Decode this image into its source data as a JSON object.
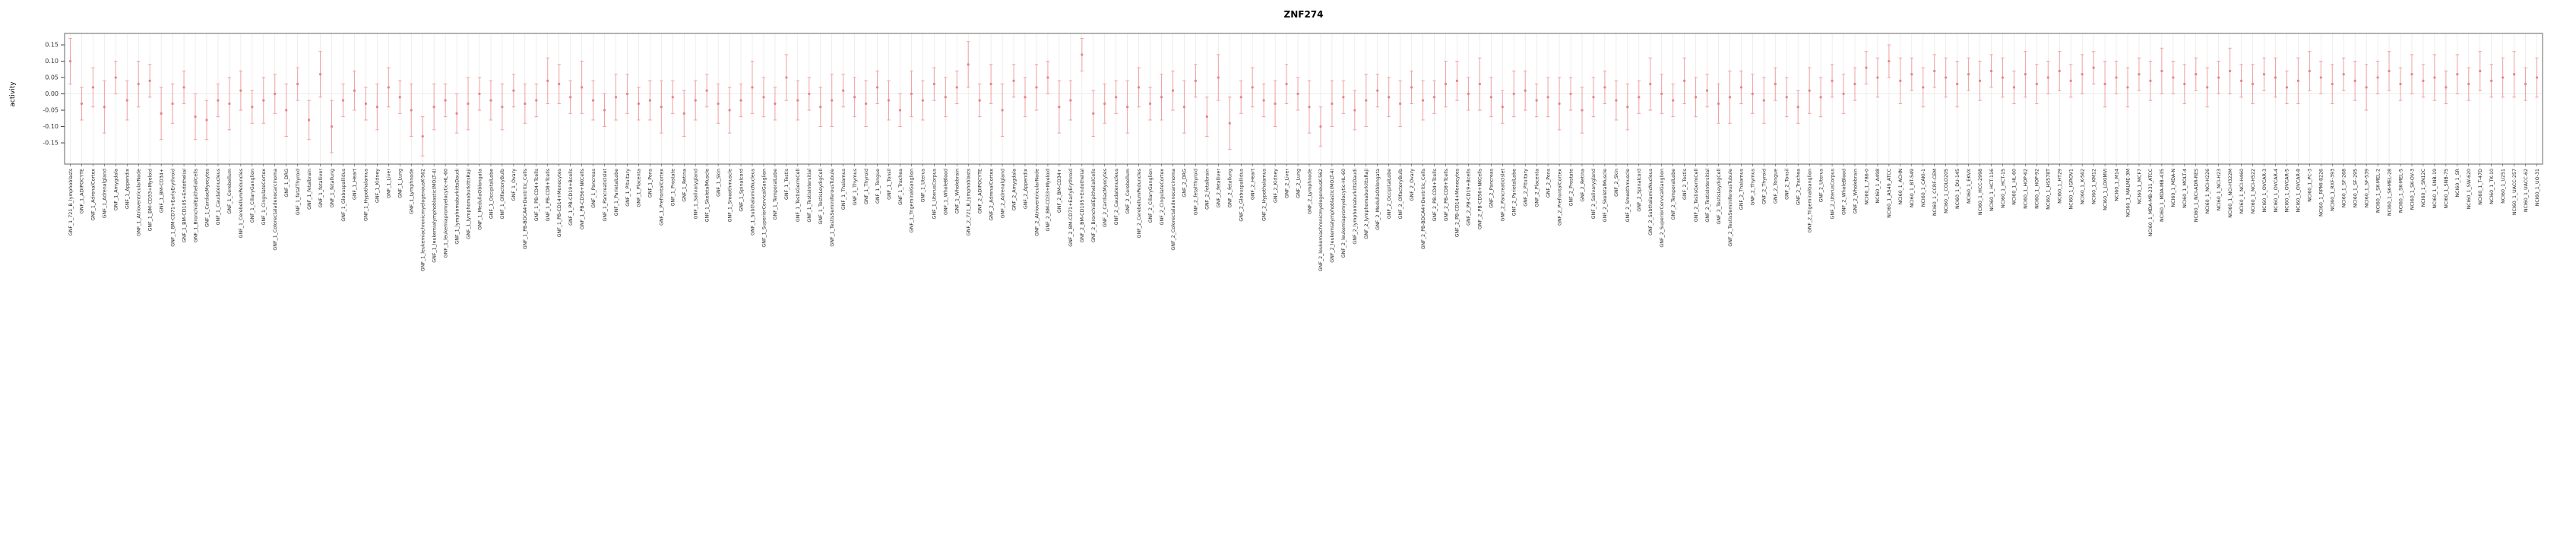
{
  "chart_data": {
    "type": "scatter",
    "title": "ZNF274",
    "ylabel": "activity",
    "xlabel": "",
    "ylim": [
      -0.215,
      0.185
    ],
    "yticks": [
      0.15,
      0.1,
      0.05,
      0.0,
      -0.05,
      -0.1,
      -0.15
    ],
    "grid": "vertical-per-category",
    "legend": "none",
    "point_color": "#e08585",
    "errorbar_color": "#f0a0a0",
    "gridline_color": "#e4e4e4",
    "groups": [
      {
        "name": "GNF_1",
        "prefix": "GNF_1_",
        "labels": [
          "721_B_lymphoblasts",
          "ADIPOCYTE",
          "AdrenalCortex",
          "Adrenalgland",
          "Amygdala",
          "Appendix",
          "AtrioventricularNode",
          "BM-CD33+Myeloid",
          "BM-CD34+",
          "BM-CD71+EarlyErythroid",
          "BM-CD105+Endothelial",
          "BronchialEpithelialCells",
          "CardiacMyocytes",
          "Caudatenucleus",
          "Cerebellum",
          "CerebellumPeduncles",
          "CiliaryGanglion",
          "CingulateCortex",
          "Colorectaladenocarcinoma",
          "DRG",
          "fetalThyroid",
          "fetalbrain",
          "fetalliver",
          "fetallung",
          "Globuspallidus",
          "Heart",
          "Hypothalamus",
          "Kidney",
          "Liver",
          "Lung",
          "Lymphnode",
          "leukemiachronicmyelogenousK-562",
          "leukemialymphoblastic(MOLT-4)",
          "leukemiapromyelocytic-HL-60",
          "lymphomaburkittsDaudi",
          "lymphomaburkittsRaji",
          "MedullaOblongata",
          "OccipitalLobe",
          "OlfactoryBulb",
          "Ovary",
          "PB-BDCA4+Dentritic_Cells",
          "PB-CD4+Tcells",
          "PB-CD8+Tcells",
          "PB-CD14+Monocytes",
          "PB-CD19+Bcells",
          "PB-CD56+NKCells",
          "Pancreas",
          "PancreaticIslet",
          "ParietalLobe",
          "Pituitary",
          "Placenta",
          "Pons",
          "PrefrontalCortex",
          "Prostate",
          "Retina",
          "Salivarygland",
          "SkeletalMuscle",
          "Skin",
          "Smoothmuscle",
          "Spinalcord",
          "SubthalamicNucleus",
          "SuperiorCervicalGanglion",
          "TemporalLobe",
          "Testis",
          "TestisGermCell",
          "TestisIntersitial",
          "TestisLeydigCell",
          "TestisSeminiferousTubule",
          "Thalamus",
          "Thymus",
          "Thyroid",
          "Tongue",
          "Tonsil",
          "Trachea",
          "TrigeminalGanglion",
          "Uterus",
          "UterusCorpus",
          "WholeBlood",
          "Wholebrain"
        ],
        "values": [
          0.1,
          -0.03,
          0.02,
          -0.04,
          0.05,
          -0.02,
          0.03,
          0.04,
          -0.06,
          -0.03,
          0.02,
          -0.07,
          -0.08,
          -0.02,
          -0.03,
          0.01,
          -0.04,
          -0.02,
          0.0,
          -0.05,
          0.03,
          -0.08,
          0.06,
          -0.1,
          -0.02,
          0.01,
          -0.03,
          -0.04,
          0.02,
          -0.01,
          -0.05,
          -0.13,
          -0.04,
          -0.02,
          -0.06,
          -0.03,
          0.0,
          -0.02,
          -0.04,
          0.01,
          -0.03,
          -0.02,
          0.04,
          0.03,
          -0.01,
          0.02,
          -0.02,
          -0.05,
          -0.01,
          0.0,
          -0.03,
          -0.02,
          -0.04,
          -0.01,
          -0.06,
          -0.02,
          0.01,
          -0.03,
          -0.05,
          -0.02,
          0.02,
          -0.01,
          -0.03,
          0.05,
          -0.02,
          0.0,
          -0.04,
          -0.02,
          0.01,
          -0.01,
          -0.03,
          0.02,
          -0.02,
          -0.05,
          0.0,
          -0.02,
          0.03,
          -0.01,
          0.02
        ],
        "errors": [
          0.07,
          0.05,
          0.06,
          0.08,
          0.05,
          0.06,
          0.07,
          0.05,
          0.08,
          0.06,
          0.05,
          0.07,
          0.06,
          0.05,
          0.08,
          0.06,
          0.05,
          0.07,
          0.06,
          0.08,
          0.05,
          0.06,
          0.07,
          0.08,
          0.05,
          0.06,
          0.05,
          0.07,
          0.06,
          0.05,
          0.08,
          0.06,
          0.07,
          0.05,
          0.06,
          0.08,
          0.05,
          0.06,
          0.07,
          0.05,
          0.06,
          0.05,
          0.07,
          0.06,
          0.05,
          0.08,
          0.06,
          0.05,
          0.07,
          0.06,
          0.05,
          0.06,
          0.08,
          0.05,
          0.07,
          0.06,
          0.05,
          0.06,
          0.07,
          0.05,
          0.08,
          0.06,
          0.05,
          0.07,
          0.06,
          0.05,
          0.06,
          0.08,
          0.05,
          0.06,
          0.07,
          0.05,
          0.06,
          0.05,
          0.07,
          0.06,
          0.05,
          0.06,
          0.05
        ]
      },
      {
        "name": "GNF_2",
        "prefix": "GNF_2_",
        "labels": [
          "721_B_lymphoblasts",
          "ADIPOCYTE",
          "AdrenalCortex",
          "Adrenalgland",
          "Amygdala",
          "Appendix",
          "AtrioventricularNode",
          "BM-CD33+Myeloid",
          "BM-CD34+",
          "BM-CD71+EarlyErythroid",
          "BM-CD105+Endothelial",
          "BronchialEpithelialCells",
          "CardiacMyocytes",
          "Caudatenucleus",
          "Cerebellum",
          "CerebellumPeduncles",
          "CiliaryGanglion",
          "CingulateCortex",
          "Colorectaladenocarcinoma",
          "DRG",
          "fetalThyroid",
          "fetalbrain",
          "fetalliver",
          "fetallung",
          "Globuspallidus",
          "Heart",
          "Hypothalamus",
          "Kidney",
          "Liver",
          "Lung",
          "Lymphnode",
          "leukemiachronicmyelogenousK-562",
          "leukemialymphoblastic(MOLT-4)",
          "leukemiapromyelocytic-HL-60",
          "lymphomaburkittsDaudi",
          "lymphomaburkittsRaji",
          "MedullaOblongata",
          "OccipitalLobe",
          "OlfactoryBulb",
          "Ovary",
          "PB-BDCA4+Dentritic_Cells",
          "PB-CD4+Tcells",
          "PB-CD8+Tcells",
          "PB-CD14+Monocytes",
          "PB-CD19+Bcells",
          "PB-CD56+NKCells",
          "Pancreas",
          "PancreaticIslet",
          "ParietalLobe",
          "Pituitary",
          "Placenta",
          "Pons",
          "PrefrontalCortex",
          "Prostate",
          "Retina",
          "Salivarygland",
          "SkeletalMuscle",
          "Skin",
          "Smoothmuscle",
          "Spinalcord",
          "SubthalamicNucleus",
          "SuperiorCervicalGanglion",
          "TemporalLobe",
          "Testis",
          "TestisGermCell",
          "TestisIntersitial",
          "TestisLeydigCell",
          "TestisSeminiferousTubule",
          "Thalamus",
          "Thymus",
          "Thyroid",
          "Tongue",
          "Tonsil",
          "Trachea",
          "TrigeminalGanglion",
          "Uterus",
          "UterusCorpus",
          "WholeBlood",
          "Wholebrain"
        ],
        "values": [
          0.09,
          -0.02,
          0.03,
          -0.05,
          0.04,
          -0.01,
          0.02,
          0.05,
          -0.04,
          -0.02,
          0.12,
          -0.06,
          -0.03,
          -0.01,
          -0.04,
          0.02,
          -0.03,
          -0.01,
          0.01,
          -0.04,
          0.04,
          -0.07,
          0.05,
          -0.09,
          -0.01,
          0.02,
          -0.02,
          -0.03,
          0.03,
          0.0,
          -0.04,
          -0.1,
          -0.03,
          -0.01,
          -0.05,
          -0.02,
          0.01,
          -0.01,
          -0.03,
          0.02,
          -0.02,
          -0.01,
          0.03,
          0.04,
          0.0,
          0.03,
          -0.01,
          -0.04,
          0.0,
          0.01,
          -0.02,
          -0.01,
          -0.03,
          0.0,
          -0.05,
          -0.01,
          0.02,
          -0.02,
          -0.04,
          -0.01,
          0.03,
          0.0,
          -0.02,
          0.04,
          -0.01,
          0.01,
          -0.03,
          -0.01,
          0.02,
          0.0,
          -0.02,
          0.03,
          -0.01,
          -0.04,
          0.01,
          -0.01,
          0.04,
          0.0,
          0.03
        ],
        "errors": [
          0.07,
          0.05,
          0.06,
          0.08,
          0.05,
          0.06,
          0.07,
          0.05,
          0.08,
          0.06,
          0.05,
          0.07,
          0.06,
          0.05,
          0.08,
          0.06,
          0.05,
          0.07,
          0.06,
          0.08,
          0.05,
          0.06,
          0.07,
          0.08,
          0.05,
          0.06,
          0.05,
          0.07,
          0.06,
          0.05,
          0.08,
          0.06,
          0.07,
          0.05,
          0.06,
          0.08,
          0.05,
          0.06,
          0.07,
          0.05,
          0.06,
          0.05,
          0.07,
          0.06,
          0.05,
          0.08,
          0.06,
          0.05,
          0.07,
          0.06,
          0.05,
          0.06,
          0.08,
          0.05,
          0.07,
          0.06,
          0.05,
          0.06,
          0.07,
          0.05,
          0.08,
          0.06,
          0.05,
          0.07,
          0.06,
          0.05,
          0.06,
          0.08,
          0.05,
          0.06,
          0.07,
          0.05,
          0.06,
          0.05,
          0.07,
          0.06,
          0.05,
          0.06,
          0.05
        ]
      },
      {
        "name": "NCI60_1",
        "prefix": "NCI60_1_",
        "labels": [
          "786-0",
          "A498",
          "A549_ATCC",
          "ACHN",
          "BT-549",
          "CAKI-1",
          "CCRF-CEM",
          "COLO205",
          "DU-145",
          "EKVX",
          "HCC-2998",
          "HCT-116",
          "HCT-15",
          "HL-60",
          "HOP-62",
          "HOP-92",
          "HS578T",
          "HT29",
          "IGROV1",
          "K-562",
          "KM12",
          "LOXIMVI",
          "M14",
          "MALME-3M",
          "MCF7",
          "MDA-MB-231_ATCC",
          "MDA-MB-435",
          "MDA-N",
          "MOLT-4",
          "NCI-ADR-RES",
          "NCI-H226",
          "NCI-H23",
          "NCI-H322M",
          "NCI-H460",
          "NCI-H522",
          "OVCAR-3",
          "OVCAR-4",
          "OVCAR-5",
          "OVCAR-8",
          "PC-3",
          "RPMI-8226",
          "RXF-393",
          "SF-268",
          "SF-295",
          "SF-539",
          "SK-MEL-2",
          "SK-MEL-28",
          "SK-MEL-5",
          "SK-OV-3",
          "SN12C",
          "SNB-19",
          "SNB-75",
          "SR",
          "SW-620",
          "T-47D",
          "TK-10",
          "U251",
          "UACC-257",
          "UACC-62",
          "UO-31"
        ],
        "values": [
          0.08,
          0.05,
          0.1,
          0.04,
          0.06,
          0.02,
          0.07,
          0.05,
          0.03,
          0.06,
          0.04,
          0.07,
          0.05,
          0.02,
          0.06,
          0.03,
          0.05,
          0.07,
          0.04,
          0.06,
          0.08,
          0.03,
          0.05,
          0.02,
          0.06,
          0.04,
          0.07,
          0.05,
          0.03,
          0.06,
          0.02,
          0.05,
          0.07,
          0.04,
          0.03,
          0.06,
          0.05,
          0.02,
          0.04,
          0.07,
          0.05,
          0.03,
          0.06,
          0.04,
          0.02,
          0.05,
          0.07,
          0.03,
          0.06,
          0.04,
          0.05,
          0.02,
          0.06,
          0.03,
          0.07,
          0.04,
          0.05,
          0.06,
          0.03,
          0.05
        ],
        "errors": [
          0.05,
          0.06,
          0.05,
          0.07,
          0.05,
          0.06,
          0.05,
          0.06,
          0.07,
          0.05,
          0.06,
          0.05,
          0.06,
          0.05,
          0.07,
          0.06,
          0.05,
          0.06,
          0.05,
          0.06,
          0.05,
          0.07,
          0.05,
          0.06,
          0.05,
          0.06,
          0.07,
          0.05,
          0.06,
          0.05,
          0.06,
          0.05,
          0.07,
          0.05,
          0.06,
          0.05,
          0.06,
          0.05,
          0.07,
          0.06,
          0.05,
          0.06,
          0.05,
          0.06,
          0.07,
          0.05,
          0.06,
          0.05,
          0.06,
          0.05,
          0.07,
          0.05,
          0.06,
          0.05,
          0.06,
          0.05,
          0.06,
          0.07,
          0.05,
          0.06
        ]
      }
    ]
  }
}
